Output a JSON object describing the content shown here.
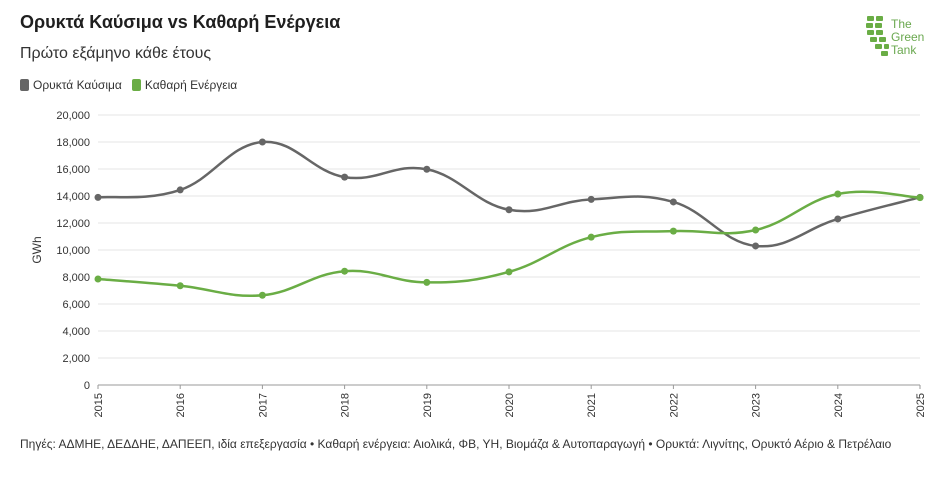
{
  "title": "Ορυκτά Καύσιμα vs Καθαρή Ενέργεια",
  "subtitle": "Πρώτο εξάμηνο κάθε έτους",
  "logo": {
    "line1": "The",
    "line2": "Green",
    "line3": "Tank"
  },
  "footer": "Πηγές: ΑΔΜΗΕ, ΔΕΔΔΗΕ, ΔΑΠΕΕΠ, ιδία επεξεργασία • Καθαρή ενέργεια: Αιολικά, ΦΒ, ΥΗ, Βιομάζα & Αυτοπαραγωγή • Ορυκτά: Λιγνίτης, Ορυκτό Αέριο & Πετρέλαιο",
  "colors": {
    "fossil": "#666666",
    "clean": "#6aad45",
    "grid": "#e6e6e6"
  },
  "chart_data": {
    "type": "line",
    "title": "Ορυκτά Καύσιμα vs Καθαρή Ενέργεια",
    "subtitle": "Πρώτο εξάμηνο κάθε έτους",
    "ylabel": "GWh",
    "xlabel": "",
    "ylim": [
      0,
      20000
    ],
    "yticks": [
      "0",
      "2,000",
      "4,000",
      "6,000",
      "8,000",
      "10,000",
      "12,000",
      "14,000",
      "16,000",
      "18,000",
      "20,000"
    ],
    "categories": [
      "2015",
      "2016",
      "2017",
      "2018",
      "2019",
      "2020",
      "2021",
      "2022",
      "2023",
      "2024",
      "2025"
    ],
    "legend_position": "top-left",
    "series": [
      {
        "name": "Ορυκτά Καύσιμα",
        "values": [
          13900,
          14450,
          18000,
          15400,
          15980,
          12980,
          13750,
          13560,
          10300,
          12300,
          13900
        ]
      },
      {
        "name": "Καθαρή Ενέργεια",
        "values": [
          7850,
          7350,
          6650,
          8430,
          7600,
          8380,
          10950,
          11400,
          11480,
          14150,
          13880
        ]
      }
    ]
  }
}
